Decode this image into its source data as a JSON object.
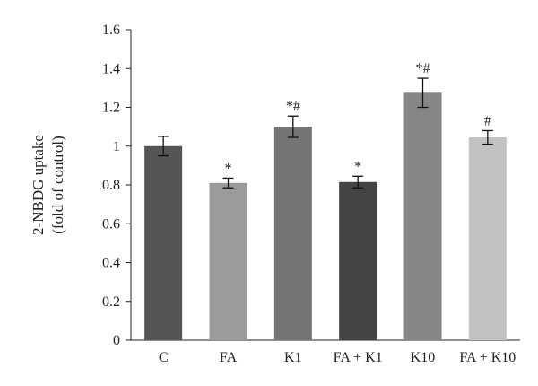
{
  "chart_data": {
    "type": "bar",
    "title": "",
    "xlabel": "",
    "ylabel": [
      "2-NBDG uptake",
      "(fold of control)"
    ],
    "ylim": [
      0,
      1.6
    ],
    "yticks": [
      "0",
      "0.2",
      "0.4",
      "0.6",
      "0.8",
      "1",
      "1.2",
      "1.4",
      "1.6"
    ],
    "yticks_values": [
      0,
      0.2,
      0.4,
      0.6,
      0.8,
      1.0,
      1.2,
      1.4,
      1.6
    ],
    "grid": false,
    "legend": "none",
    "categories": [
      "C",
      "FA",
      "K1",
      "FA + K1",
      "K10",
      "FA + K10"
    ],
    "values": [
      1.0,
      0.81,
      1.1,
      0.815,
      1.275,
      1.045
    ],
    "errors": [
      0.05,
      0.025,
      0.055,
      0.03,
      0.075,
      0.035
    ],
    "significance": [
      "",
      "*",
      "*#",
      "*",
      "*#",
      "#"
    ],
    "colors": [
      "#555555",
      "#9b9b9b",
      "#757575",
      "#444444",
      "#868686",
      "#c2c2c2"
    ]
  }
}
